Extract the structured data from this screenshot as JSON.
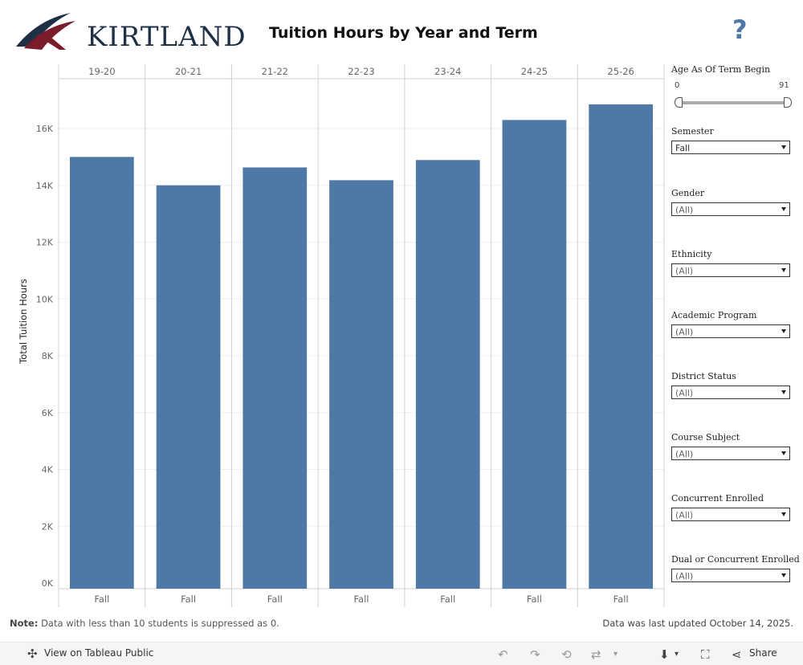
{
  "header": {
    "logo_text": "KIRTLAND",
    "title": "Tuition Hours by Year and Term",
    "help_label": "?"
  },
  "chart_data": {
    "type": "bar",
    "categories": [
      "19-20",
      "20-21",
      "21-22",
      "22-23",
      "23-24",
      "24-25",
      "25-26"
    ],
    "sub_categories": [
      "Fall",
      "Fall",
      "Fall",
      "Fall",
      "Fall",
      "Fall",
      "Fall"
    ],
    "values": [
      15000,
      14000,
      14630,
      14180,
      14890,
      16300,
      16850
    ],
    "ylabel": "Total Tuition Hours",
    "xlabel": "",
    "ylim": [
      0,
      17500
    ],
    "yticks": [
      0,
      2000,
      4000,
      6000,
      8000,
      10000,
      12000,
      14000,
      16000
    ],
    "ytick_labels": [
      "0K",
      "2K",
      "4K",
      "6K",
      "8K",
      "10K",
      "12K",
      "14K",
      "16K"
    ],
    "bar_color": "#4e79a7",
    "grid": true
  },
  "filters": {
    "age": {
      "label": "Age As Of Term Begin",
      "min": "0",
      "max": "91"
    },
    "items": [
      {
        "label": "Semester",
        "value": "Fall"
      },
      {
        "label": "Gender",
        "value": "(All)"
      },
      {
        "label": "Ethnicity",
        "value": "(All)"
      },
      {
        "label": "Academic Program",
        "value": "(All)"
      },
      {
        "label": "District Status",
        "value": "(All)"
      },
      {
        "label": "Course Subject",
        "value": "(All)"
      },
      {
        "label": "Concurrent Enrolled",
        "value": "(All)"
      },
      {
        "label": "Dual or Concurrent Enrolled",
        "value": "(All)"
      }
    ]
  },
  "footer": {
    "note_prefix": "Note:",
    "note_text": " Data with less than 10 students is suppressed as 0.",
    "updated": "Data was last updated October 14, 2025."
  },
  "toolbar": {
    "view_label": "View on Tableau Public",
    "share_label": "Share"
  }
}
